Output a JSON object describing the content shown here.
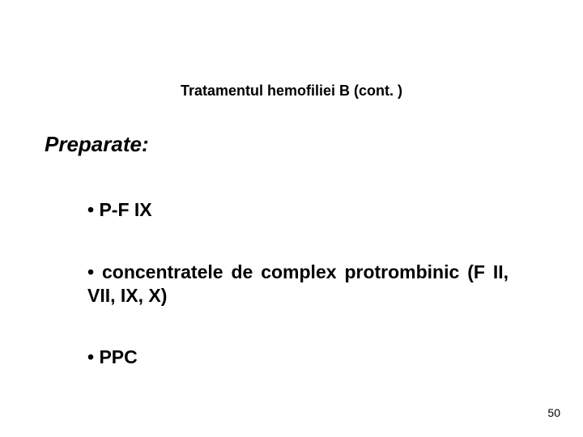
{
  "slide": {
    "title": "Tratamentul hemofiliei B (cont. )",
    "subheading": "Preparate:",
    "bullets": [
      "P-F IX",
      "concentratele de complex protrombinic (F II, VII, IX, X)",
      "PPC"
    ],
    "page_number": "50"
  },
  "style": {
    "background_color": "#ffffff",
    "text_color": "#000000",
    "title_fontsize": 18,
    "subheading_fontsize": 26,
    "bullet_fontsize": 23,
    "pagenum_fontsize": 14,
    "font_family": "Verdana, Geneva, sans-serif"
  }
}
